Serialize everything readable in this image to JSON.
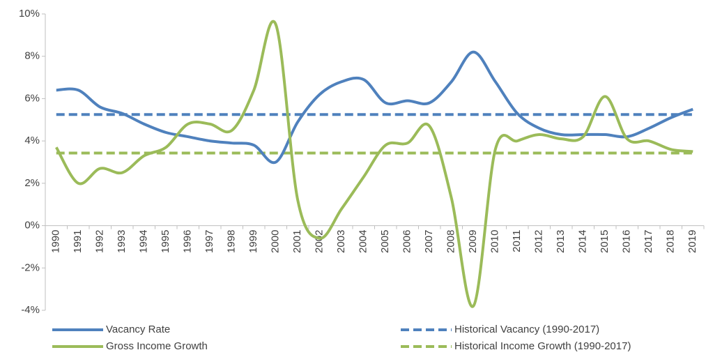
{
  "chart_data": {
    "type": "line",
    "categories": [
      "1990",
      "1991",
      "1992",
      "1993",
      "1994",
      "1995",
      "1996",
      "1997",
      "1998",
      "1999",
      "2000",
      "2001",
      "2002",
      "2003",
      "2004",
      "2005",
      "2006",
      "2007",
      "2008",
      "2009",
      "2010",
      "2011",
      "2012",
      "2013",
      "2014",
      "2015",
      "2016",
      "2017",
      "2018",
      "2019"
    ],
    "series": [
      {
        "name": "Vacancy Rate",
        "color": "#4f81bd",
        "dashed": false,
        "values": [
          6.4,
          6.4,
          5.6,
          5.3,
          4.8,
          4.4,
          4.2,
          4.0,
          3.9,
          3.8,
          3.0,
          4.9,
          6.2,
          6.8,
          6.9,
          5.8,
          5.9,
          5.8,
          6.8,
          8.2,
          6.8,
          5.3,
          4.6,
          4.3,
          4.3,
          4.3,
          4.2,
          4.6,
          5.1,
          5.5
        ]
      },
      {
        "name": "Historical Vacancy (1990-2017)",
        "color": "#4f81bd",
        "dashed": true,
        "values": [
          5.25,
          5.25,
          5.25,
          5.25,
          5.25,
          5.25,
          5.25,
          5.25,
          5.25,
          5.25,
          5.25,
          5.25,
          5.25,
          5.25,
          5.25,
          5.25,
          5.25,
          5.25,
          5.25,
          5.25,
          5.25,
          5.25,
          5.25,
          5.25,
          5.25,
          5.25,
          5.25,
          5.25,
          5.25,
          5.25
        ]
      },
      {
        "name": "Gross Income Growth",
        "color": "#9bbb59",
        "dashed": false,
        "values": [
          3.7,
          2.0,
          2.7,
          2.5,
          3.3,
          3.7,
          4.8,
          4.8,
          4.5,
          6.4,
          9.5,
          1.2,
          -0.6,
          0.8,
          2.3,
          3.8,
          3.9,
          4.7,
          1.3,
          -3.8,
          3.6,
          4.0,
          4.3,
          4.1,
          4.2,
          6.1,
          4.1,
          4.0,
          3.6,
          3.5
        ]
      },
      {
        "name": "Historical Income Growth (1990-2017)",
        "color": "#9bbb59",
        "dashed": true,
        "values": [
          3.43,
          3.43,
          3.43,
          3.43,
          3.43,
          3.43,
          3.43,
          3.43,
          3.43,
          3.43,
          3.43,
          3.43,
          3.43,
          3.43,
          3.43,
          3.43,
          3.43,
          3.43,
          3.43,
          3.43,
          3.43,
          3.43,
          3.43,
          3.43,
          3.43,
          3.43,
          3.43,
          3.43,
          3.43,
          3.43
        ]
      }
    ],
    "ylim": [
      -4,
      10
    ],
    "yticks": [
      {
        "value": -4,
        "label": "-4%"
      },
      {
        "value": -2,
        "label": "-2%"
      },
      {
        "value": 0,
        "label": "0%"
      },
      {
        "value": 2,
        "label": "2%"
      },
      {
        "value": 4,
        "label": "4%"
      },
      {
        "value": 6,
        "label": "6%"
      },
      {
        "value": 8,
        "label": "8%"
      },
      {
        "value": 10,
        "label": "10%"
      }
    ],
    "smooth": true
  }
}
